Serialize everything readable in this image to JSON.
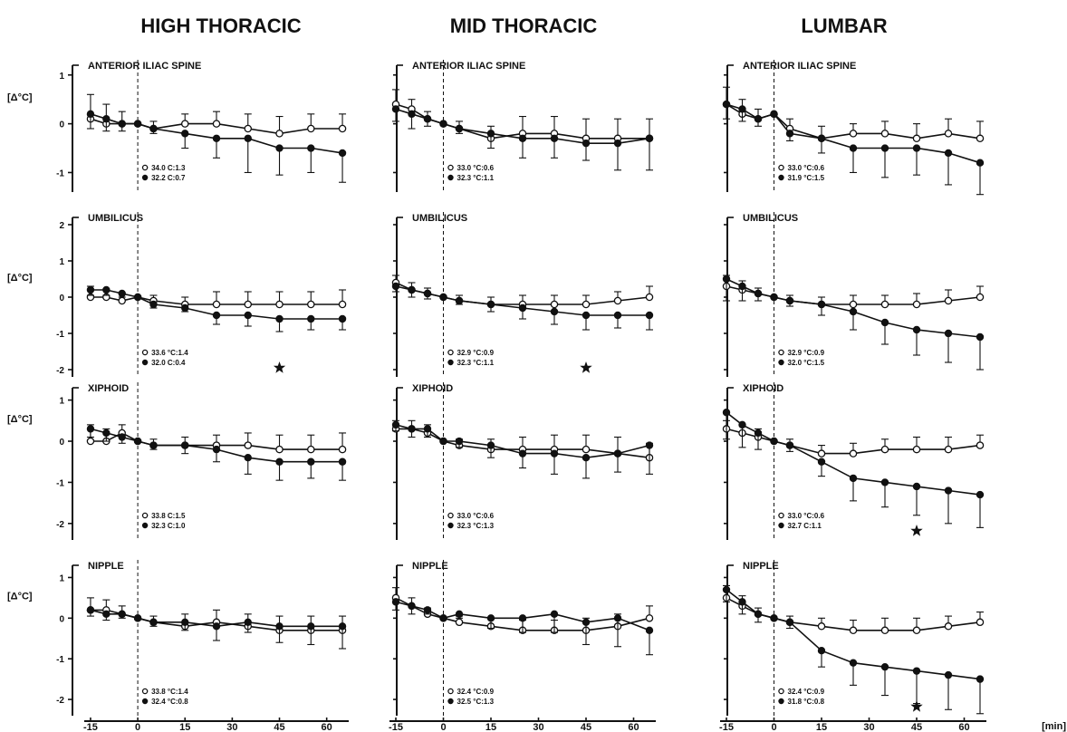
{
  "x_unit": "[min]",
  "columns": [
    "HIGH THORACIC",
    "MID THORACIC",
    "LUMBAR"
  ],
  "x_ticks": [
    -15,
    0,
    15,
    30,
    45,
    60
  ],
  "x_tick_labels": [
    "-15",
    "0",
    "15",
    "30",
    "45",
    "60"
  ],
  "chart_data": [
    {
      "type": "line",
      "column": "HIGH THORACIC",
      "row": 1,
      "title": "ANTERIOR ILIAC SPINE",
      "ylabel": "[Δ°C]",
      "yticks": [
        1,
        0,
        -1
      ],
      "ylim": [
        -1.4,
        1.2
      ],
      "xlim": [
        -17,
        67
      ],
      "x": [
        -15,
        -10,
        -5,
        0,
        5,
        15,
        25,
        35,
        45,
        55,
        65
      ],
      "series": [
        {
          "name": "34.0 C:1.3",
          "marker": "open",
          "values": [
            0.1,
            0.0,
            0.0,
            0.0,
            -0.1,
            0.0,
            0.0,
            -0.1,
            -0.2,
            -0.1,
            -0.1
          ],
          "err": [
            0.5,
            0.4,
            0.25,
            0.05,
            0.15,
            0.2,
            0.25,
            0.3,
            0.35,
            0.3,
            0.3
          ]
        },
        {
          "name": "32.2 C:0.7",
          "marker": "filled",
          "values": [
            0.2,
            0.1,
            0.0,
            0.0,
            -0.1,
            -0.2,
            -0.3,
            -0.3,
            -0.5,
            -0.5,
            -0.6
          ],
          "err": [
            0.3,
            0.25,
            0.15,
            0.05,
            0.1,
            0.3,
            0.4,
            0.7,
            0.55,
            0.5,
            0.6
          ]
        }
      ],
      "stars": []
    },
    {
      "type": "line",
      "column": "HIGH THORACIC",
      "row": 2,
      "title": "UMBILICUS",
      "ylabel": "[Δ°C]",
      "yticks": [
        2,
        1,
        0,
        -1,
        -2
      ],
      "ylim": [
        -2.2,
        2.2
      ],
      "xlim": [
        -17,
        67
      ],
      "x": [
        -15,
        -10,
        -5,
        0,
        5,
        15,
        25,
        35,
        45,
        55,
        65
      ],
      "series": [
        {
          "name": "33.6 °C:1.4",
          "marker": "open",
          "values": [
            0.0,
            0.0,
            -0.1,
            0.0,
            -0.1,
            -0.2,
            -0.2,
            -0.2,
            -0.2,
            -0.2,
            -0.2
          ],
          "err": [
            0.3,
            0.2,
            0.2,
            0.05,
            0.15,
            0.2,
            0.35,
            0.35,
            0.35,
            0.35,
            0.4
          ]
        },
        {
          "name": "32.0 C:0.4",
          "marker": "filled",
          "values": [
            0.2,
            0.2,
            0.1,
            0.0,
            -0.2,
            -0.3,
            -0.5,
            -0.5,
            -0.6,
            -0.6,
            -0.6
          ],
          "err": [
            0.15,
            0.15,
            0.1,
            0.05,
            0.1,
            0.1,
            0.25,
            0.3,
            0.35,
            0.3,
            0.3
          ]
        }
      ],
      "stars": [
        45
      ]
    },
    {
      "type": "line",
      "column": "HIGH THORACIC",
      "row": 3,
      "title": "XIPHOID",
      "ylabel": "[Δ°C]",
      "yticks": [
        1,
        0,
        -1,
        -2
      ],
      "ylim": [
        -2.4,
        1.3
      ],
      "xlim": [
        -17,
        67
      ],
      "x": [
        -15,
        -10,
        -5,
        0,
        5,
        15,
        25,
        35,
        45,
        55,
        65
      ],
      "series": [
        {
          "name": "33.8 C:1.5",
          "marker": "open",
          "values": [
            0.0,
            0.0,
            0.2,
            0.0,
            -0.1,
            -0.1,
            -0.1,
            -0.1,
            -0.2,
            -0.2,
            -0.2
          ],
          "err": [
            0.4,
            0.3,
            0.2,
            0.05,
            0.15,
            0.2,
            0.25,
            0.3,
            0.35,
            0.35,
            0.4
          ]
        },
        {
          "name": "32.3 C:1.0",
          "marker": "filled",
          "values": [
            0.3,
            0.2,
            0.1,
            0.0,
            -0.1,
            -0.1,
            -0.2,
            -0.4,
            -0.5,
            -0.5,
            -0.5
          ],
          "err": [
            0.2,
            0.2,
            0.15,
            0.05,
            0.1,
            0.2,
            0.3,
            0.4,
            0.45,
            0.4,
            0.45
          ]
        }
      ],
      "stars": []
    },
    {
      "type": "line",
      "column": "HIGH THORACIC",
      "row": 4,
      "title": "NIPPLE",
      "ylabel": "[Δ°C]",
      "yticks": [
        1,
        0,
        -1,
        -2
      ],
      "ylim": [
        -2.4,
        1.3
      ],
      "xlim": [
        -17,
        67
      ],
      "x": [
        -15,
        -10,
        -5,
        0,
        5,
        15,
        25,
        35,
        45,
        55,
        65
      ],
      "series": [
        {
          "name": "33.8 °C:1.4",
          "marker": "open",
          "values": [
            0.2,
            0.2,
            0.1,
            0.0,
            -0.1,
            -0.2,
            -0.1,
            -0.2,
            -0.3,
            -0.3,
            -0.3
          ],
          "err": [
            0.3,
            0.25,
            0.2,
            0.05,
            0.15,
            0.3,
            0.3,
            0.3,
            0.35,
            0.35,
            0.35
          ]
        },
        {
          "name": "32.4 °C:0.8",
          "marker": "filled",
          "values": [
            0.2,
            0.1,
            0.1,
            0.0,
            -0.1,
            -0.1,
            -0.2,
            -0.1,
            -0.2,
            -0.2,
            -0.2
          ],
          "err": [
            0.15,
            0.15,
            0.1,
            0.05,
            0.1,
            0.2,
            0.35,
            0.25,
            0.4,
            0.45,
            0.55
          ]
        }
      ],
      "stars": []
    },
    {
      "type": "line",
      "column": "MID THORACIC",
      "row": 1,
      "title": "ANTERIOR ILIAC SPINE",
      "ylabel": "",
      "yticks": [],
      "ylim": [
        -1.4,
        1.2
      ],
      "xlim": [
        -17,
        67
      ],
      "x": [
        -15,
        -10,
        -5,
        0,
        5,
        15,
        25,
        35,
        45,
        55,
        65
      ],
      "series": [
        {
          "name": "33.0 °C:0.6",
          "marker": "open",
          "values": [
            0.4,
            0.3,
            0.1,
            0.0,
            -0.1,
            -0.3,
            -0.2,
            -0.2,
            -0.3,
            -0.3,
            -0.3
          ],
          "err": [
            0.3,
            0.2,
            0.15,
            0.05,
            0.15,
            0.25,
            0.35,
            0.35,
            0.4,
            0.4,
            0.4
          ]
        },
        {
          "name": "32.3 °C:1.1",
          "marker": "filled",
          "values": [
            0.3,
            0.2,
            0.1,
            0.0,
            -0.1,
            -0.2,
            -0.3,
            -0.3,
            -0.4,
            -0.4,
            -0.3
          ],
          "err": [
            0.25,
            0.3,
            0.15,
            0.05,
            0.1,
            0.3,
            0.4,
            0.4,
            0.35,
            0.55,
            0.65
          ]
        }
      ],
      "stars": []
    },
    {
      "type": "line",
      "column": "MID THORACIC",
      "row": 2,
      "title": "UMBILICUS",
      "ylabel": "",
      "yticks": [],
      "ylim": [
        -2.2,
        2.2
      ],
      "xlim": [
        -17,
        67
      ],
      "x": [
        -15,
        -10,
        -5,
        0,
        5,
        15,
        25,
        35,
        45,
        55,
        65
      ],
      "series": [
        {
          "name": "32.9 °C:0.9",
          "marker": "open",
          "values": [
            0.4,
            0.2,
            0.1,
            0.0,
            -0.1,
            -0.2,
            -0.2,
            -0.2,
            -0.2,
            -0.1,
            0.0
          ],
          "err": [
            0.2,
            0.2,
            0.15,
            0.05,
            0.15,
            0.2,
            0.25,
            0.25,
            0.25,
            0.25,
            0.3
          ]
        },
        {
          "name": "32.3 °C:1.1",
          "marker": "filled",
          "values": [
            0.3,
            0.2,
            0.1,
            0.0,
            -0.1,
            -0.2,
            -0.3,
            -0.4,
            -0.5,
            -0.5,
            -0.5
          ],
          "err": [
            0.15,
            0.2,
            0.15,
            0.05,
            0.1,
            0.2,
            0.3,
            0.35,
            0.4,
            0.35,
            0.4
          ]
        }
      ],
      "stars": [
        45
      ]
    },
    {
      "type": "line",
      "column": "MID THORACIC",
      "row": 3,
      "title": "XIPHOID",
      "ylabel": "",
      "yticks": [],
      "ylim": [
        -2.4,
        1.3
      ],
      "xlim": [
        -17,
        67
      ],
      "x": [
        -15,
        -10,
        -5,
        0,
        5,
        15,
        25,
        35,
        45,
        55,
        65
      ],
      "series": [
        {
          "name": "33.0 °C:0.6",
          "marker": "open",
          "values": [
            0.3,
            0.3,
            0.2,
            0.0,
            -0.1,
            -0.2,
            -0.2,
            -0.2,
            -0.2,
            -0.3,
            -0.4
          ],
          "err": [
            0.2,
            0.2,
            0.2,
            0.05,
            0.15,
            0.25,
            0.3,
            0.35,
            0.35,
            0.4,
            0.35
          ]
        },
        {
          "name": "32.3 °C:1.3",
          "marker": "filled",
          "values": [
            0.4,
            0.3,
            0.3,
            0.0,
            0.0,
            -0.1,
            -0.3,
            -0.3,
            -0.4,
            -0.3,
            -0.1
          ],
          "err": [
            0.15,
            0.2,
            0.2,
            0.05,
            0.15,
            0.3,
            0.35,
            0.5,
            0.5,
            0.45,
            0.7
          ]
        }
      ],
      "stars": []
    },
    {
      "type": "line",
      "column": "MID THORACIC",
      "row": 4,
      "title": "NIPPLE",
      "ylabel": "",
      "yticks": [],
      "ylim": [
        -2.4,
        1.3
      ],
      "xlim": [
        -17,
        67
      ],
      "x": [
        -15,
        -10,
        -5,
        0,
        5,
        15,
        25,
        35,
        45,
        55,
        65
      ],
      "series": [
        {
          "name": "32.4 °C:0.9",
          "marker": "open",
          "values": [
            0.5,
            0.3,
            0.1,
            0.0,
            -0.1,
            -0.2,
            -0.3,
            -0.3,
            -0.3,
            -0.2,
            0.0
          ],
          "err": [
            0.25,
            0.2,
            0.15,
            0.05,
            0.15,
            0.2,
            0.25,
            0.25,
            0.3,
            0.3,
            0.3
          ]
        },
        {
          "name": "32.5 °C:1.3",
          "marker": "filled",
          "values": [
            0.4,
            0.3,
            0.2,
            0.0,
            0.1,
            0.0,
            0.0,
            0.1,
            -0.1,
            0.0,
            -0.3
          ],
          "err": [
            0.2,
            0.2,
            0.1,
            0.05,
            0.1,
            0.25,
            0.35,
            0.45,
            0.55,
            0.7,
            0.6
          ]
        }
      ],
      "stars": []
    },
    {
      "type": "line",
      "column": "LUMBAR",
      "row": 1,
      "title": "ANTERIOR ILIAC SPINE",
      "ylabel": "",
      "yticks": [],
      "ylim": [
        -1.4,
        1.2
      ],
      "xlim": [
        -17,
        67
      ],
      "x": [
        -15,
        -10,
        -5,
        0,
        5,
        15,
        25,
        35,
        45,
        55,
        65
      ],
      "series": [
        {
          "name": "33.0 °C:0.6",
          "marker": "open",
          "values": [
            0.4,
            0.2,
            0.1,
            0.2,
            -0.1,
            -0.3,
            -0.2,
            -0.2,
            -0.3,
            -0.2,
            -0.3
          ],
          "err": [
            0.35,
            0.3,
            0.2,
            0.05,
            0.2,
            0.25,
            0.2,
            0.25,
            0.3,
            0.3,
            0.35
          ]
        },
        {
          "name": "31.9 °C:1.5",
          "marker": "filled",
          "values": [
            0.4,
            0.3,
            0.1,
            0.2,
            -0.2,
            -0.3,
            -0.5,
            -0.5,
            -0.5,
            -0.6,
            -0.8
          ],
          "err": [
            0.3,
            0.25,
            0.15,
            0.05,
            0.15,
            0.3,
            0.5,
            0.6,
            0.55,
            0.65,
            0.65
          ]
        }
      ],
      "stars": []
    },
    {
      "type": "line",
      "column": "LUMBAR",
      "row": 2,
      "title": "UMBILICUS",
      "ylabel": "",
      "yticks": [],
      "ylim": [
        -2.2,
        2.2
      ],
      "xlim": [
        -17,
        67
      ],
      "x": [
        -15,
        -10,
        -5,
        0,
        5,
        15,
        25,
        35,
        45,
        55,
        65
      ],
      "series": [
        {
          "name": "32.9 °C:0.9",
          "marker": "open",
          "values": [
            0.3,
            0.2,
            0.1,
            0.0,
            -0.1,
            -0.2,
            -0.2,
            -0.2,
            -0.2,
            -0.1,
            0.0
          ],
          "err": [
            0.3,
            0.25,
            0.15,
            0.05,
            0.15,
            0.2,
            0.25,
            0.25,
            0.3,
            0.3,
            0.3
          ]
        },
        {
          "name": "32.0 °C:1.5",
          "marker": "filled",
          "values": [
            0.5,
            0.3,
            0.1,
            0.0,
            -0.1,
            -0.2,
            -0.4,
            -0.7,
            -0.9,
            -1.0,
            -1.1
          ],
          "err": [
            0.6,
            0.4,
            0.2,
            0.05,
            0.15,
            0.3,
            0.5,
            0.6,
            0.7,
            0.8,
            0.9
          ]
        }
      ],
      "stars": []
    },
    {
      "type": "line",
      "column": "LUMBAR",
      "row": 3,
      "title": "XIPHOID",
      "ylabel": "",
      "yticks": [],
      "ylim": [
        -2.4,
        1.3
      ],
      "xlim": [
        -17,
        67
      ],
      "x": [
        -15,
        -10,
        -5,
        0,
        5,
        15,
        25,
        35,
        45,
        55,
        65
      ],
      "series": [
        {
          "name": "33.0 °C:0.6",
          "marker": "open",
          "values": [
            0.3,
            0.2,
            0.1,
            0.0,
            -0.1,
            -0.3,
            -0.3,
            -0.2,
            -0.2,
            -0.2,
            -0.1
          ],
          "err": [
            0.2,
            0.2,
            0.2,
            0.05,
            0.15,
            0.2,
            0.25,
            0.25,
            0.3,
            0.3,
            0.25
          ]
        },
        {
          "name": "32.7 C:1.1",
          "marker": "filled",
          "values": [
            0.7,
            0.4,
            0.2,
            0.0,
            -0.1,
            -0.5,
            -0.9,
            -1.0,
            -1.1,
            -1.2,
            -1.3
          ],
          "err": [
            0.65,
            0.55,
            0.4,
            0.05,
            0.15,
            0.35,
            0.55,
            0.6,
            0.7,
            0.8,
            0.8
          ]
        }
      ],
      "stars": [
        45
      ]
    },
    {
      "type": "line",
      "column": "LUMBAR",
      "row": 4,
      "title": "NIPPLE",
      "ylabel": "",
      "yticks": [],
      "ylim": [
        -2.4,
        1.3
      ],
      "xlim": [
        -17,
        67
      ],
      "x": [
        -15,
        -10,
        -5,
        0,
        5,
        15,
        25,
        35,
        45,
        55,
        65
      ],
      "series": [
        {
          "name": "32.4 °C:0.9",
          "marker": "open",
          "values": [
            0.5,
            0.3,
            0.1,
            0.0,
            -0.1,
            -0.2,
            -0.3,
            -0.3,
            -0.3,
            -0.2,
            -0.1
          ],
          "err": [
            0.3,
            0.25,
            0.15,
            0.05,
            0.15,
            0.2,
            0.25,
            0.3,
            0.3,
            0.25,
            0.25
          ]
        },
        {
          "name": "31.8 °C:0.8",
          "marker": "filled",
          "values": [
            0.7,
            0.4,
            0.1,
            0.0,
            -0.1,
            -0.8,
            -1.1,
            -1.2,
            -1.3,
            -1.4,
            -1.5
          ],
          "err": [
            0.3,
            0.3,
            0.2,
            0.05,
            0.15,
            0.4,
            0.55,
            0.7,
            0.8,
            0.85,
            0.85
          ]
        }
      ],
      "stars": [
        45
      ]
    }
  ]
}
